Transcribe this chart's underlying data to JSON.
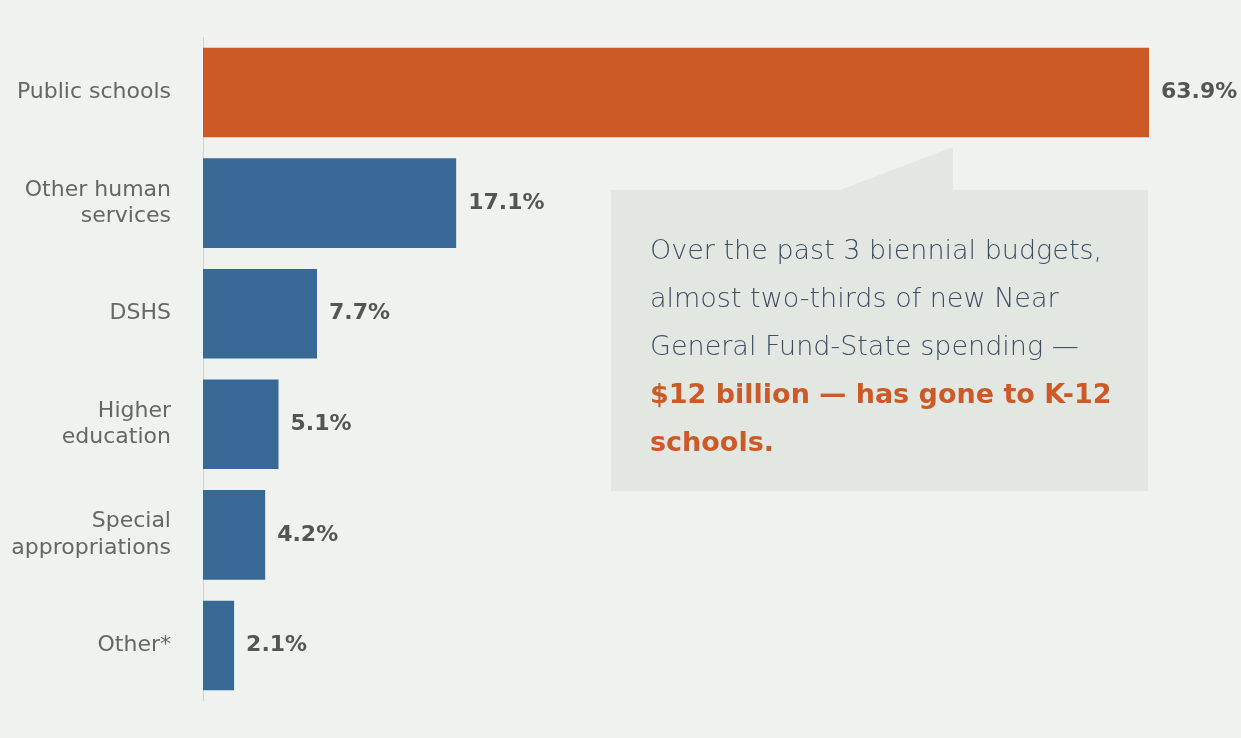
{
  "chart_data": {
    "type": "bar",
    "orientation": "horizontal",
    "categories": [
      "Public schools",
      "Other human services",
      "DSHS",
      "Higher education",
      "Special appropriations",
      "Other*"
    ],
    "values": [
      63.9,
      17.1,
      7.7,
      5.1,
      4.2,
      2.1
    ],
    "colors": [
      "#cc5a27",
      "#386896",
      "#386896",
      "#386896",
      "#386896",
      "#386896"
    ],
    "value_labels": [
      "63.9%",
      "17.1%",
      "7.7%",
      "5.1%",
      "4.2%",
      "2.1%"
    ],
    "annotations": [
      "Over the past 3 biennial budgets, almost two-thirds of new Near General Fund-State spending —",
      "$12 billion — has gone to K-12 schools."
    ],
    "legend": false
  }
}
